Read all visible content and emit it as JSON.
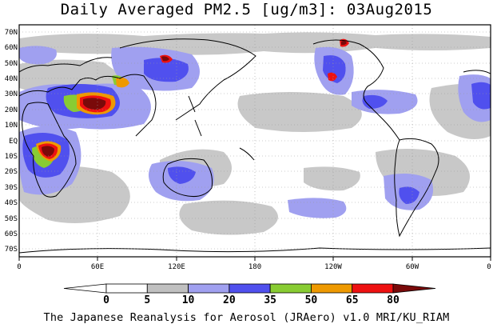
{
  "title": "Daily Averaged PM2.5 [ug/m3]: 03Aug2015",
  "credit": "The Japanese Reanalysis for Aerosol (JRAero) v1.0 MRI/KU_RIAM",
  "lat_labels": [
    "70N",
    "60N",
    "50N",
    "40N",
    "30N",
    "20N",
    "10N",
    "EQ",
    "10S",
    "20S",
    "30S",
    "40S",
    "50S",
    "60S",
    "70S"
  ],
  "lon_labels": [
    "0",
    "60E",
    "120E",
    "180",
    "120W",
    "60W",
    "0"
  ],
  "colorbar": {
    "ticks": [
      "0",
      "5",
      "10",
      "20",
      "35",
      "50",
      "65",
      "80"
    ],
    "colors": [
      "#ffffff",
      "#ffffff",
      "#c0c0c0",
      "#a0a0f0",
      "#5050ee",
      "#88cc33",
      "#ee9900",
      "#ee1111",
      "#7a0a0a"
    ]
  }
}
